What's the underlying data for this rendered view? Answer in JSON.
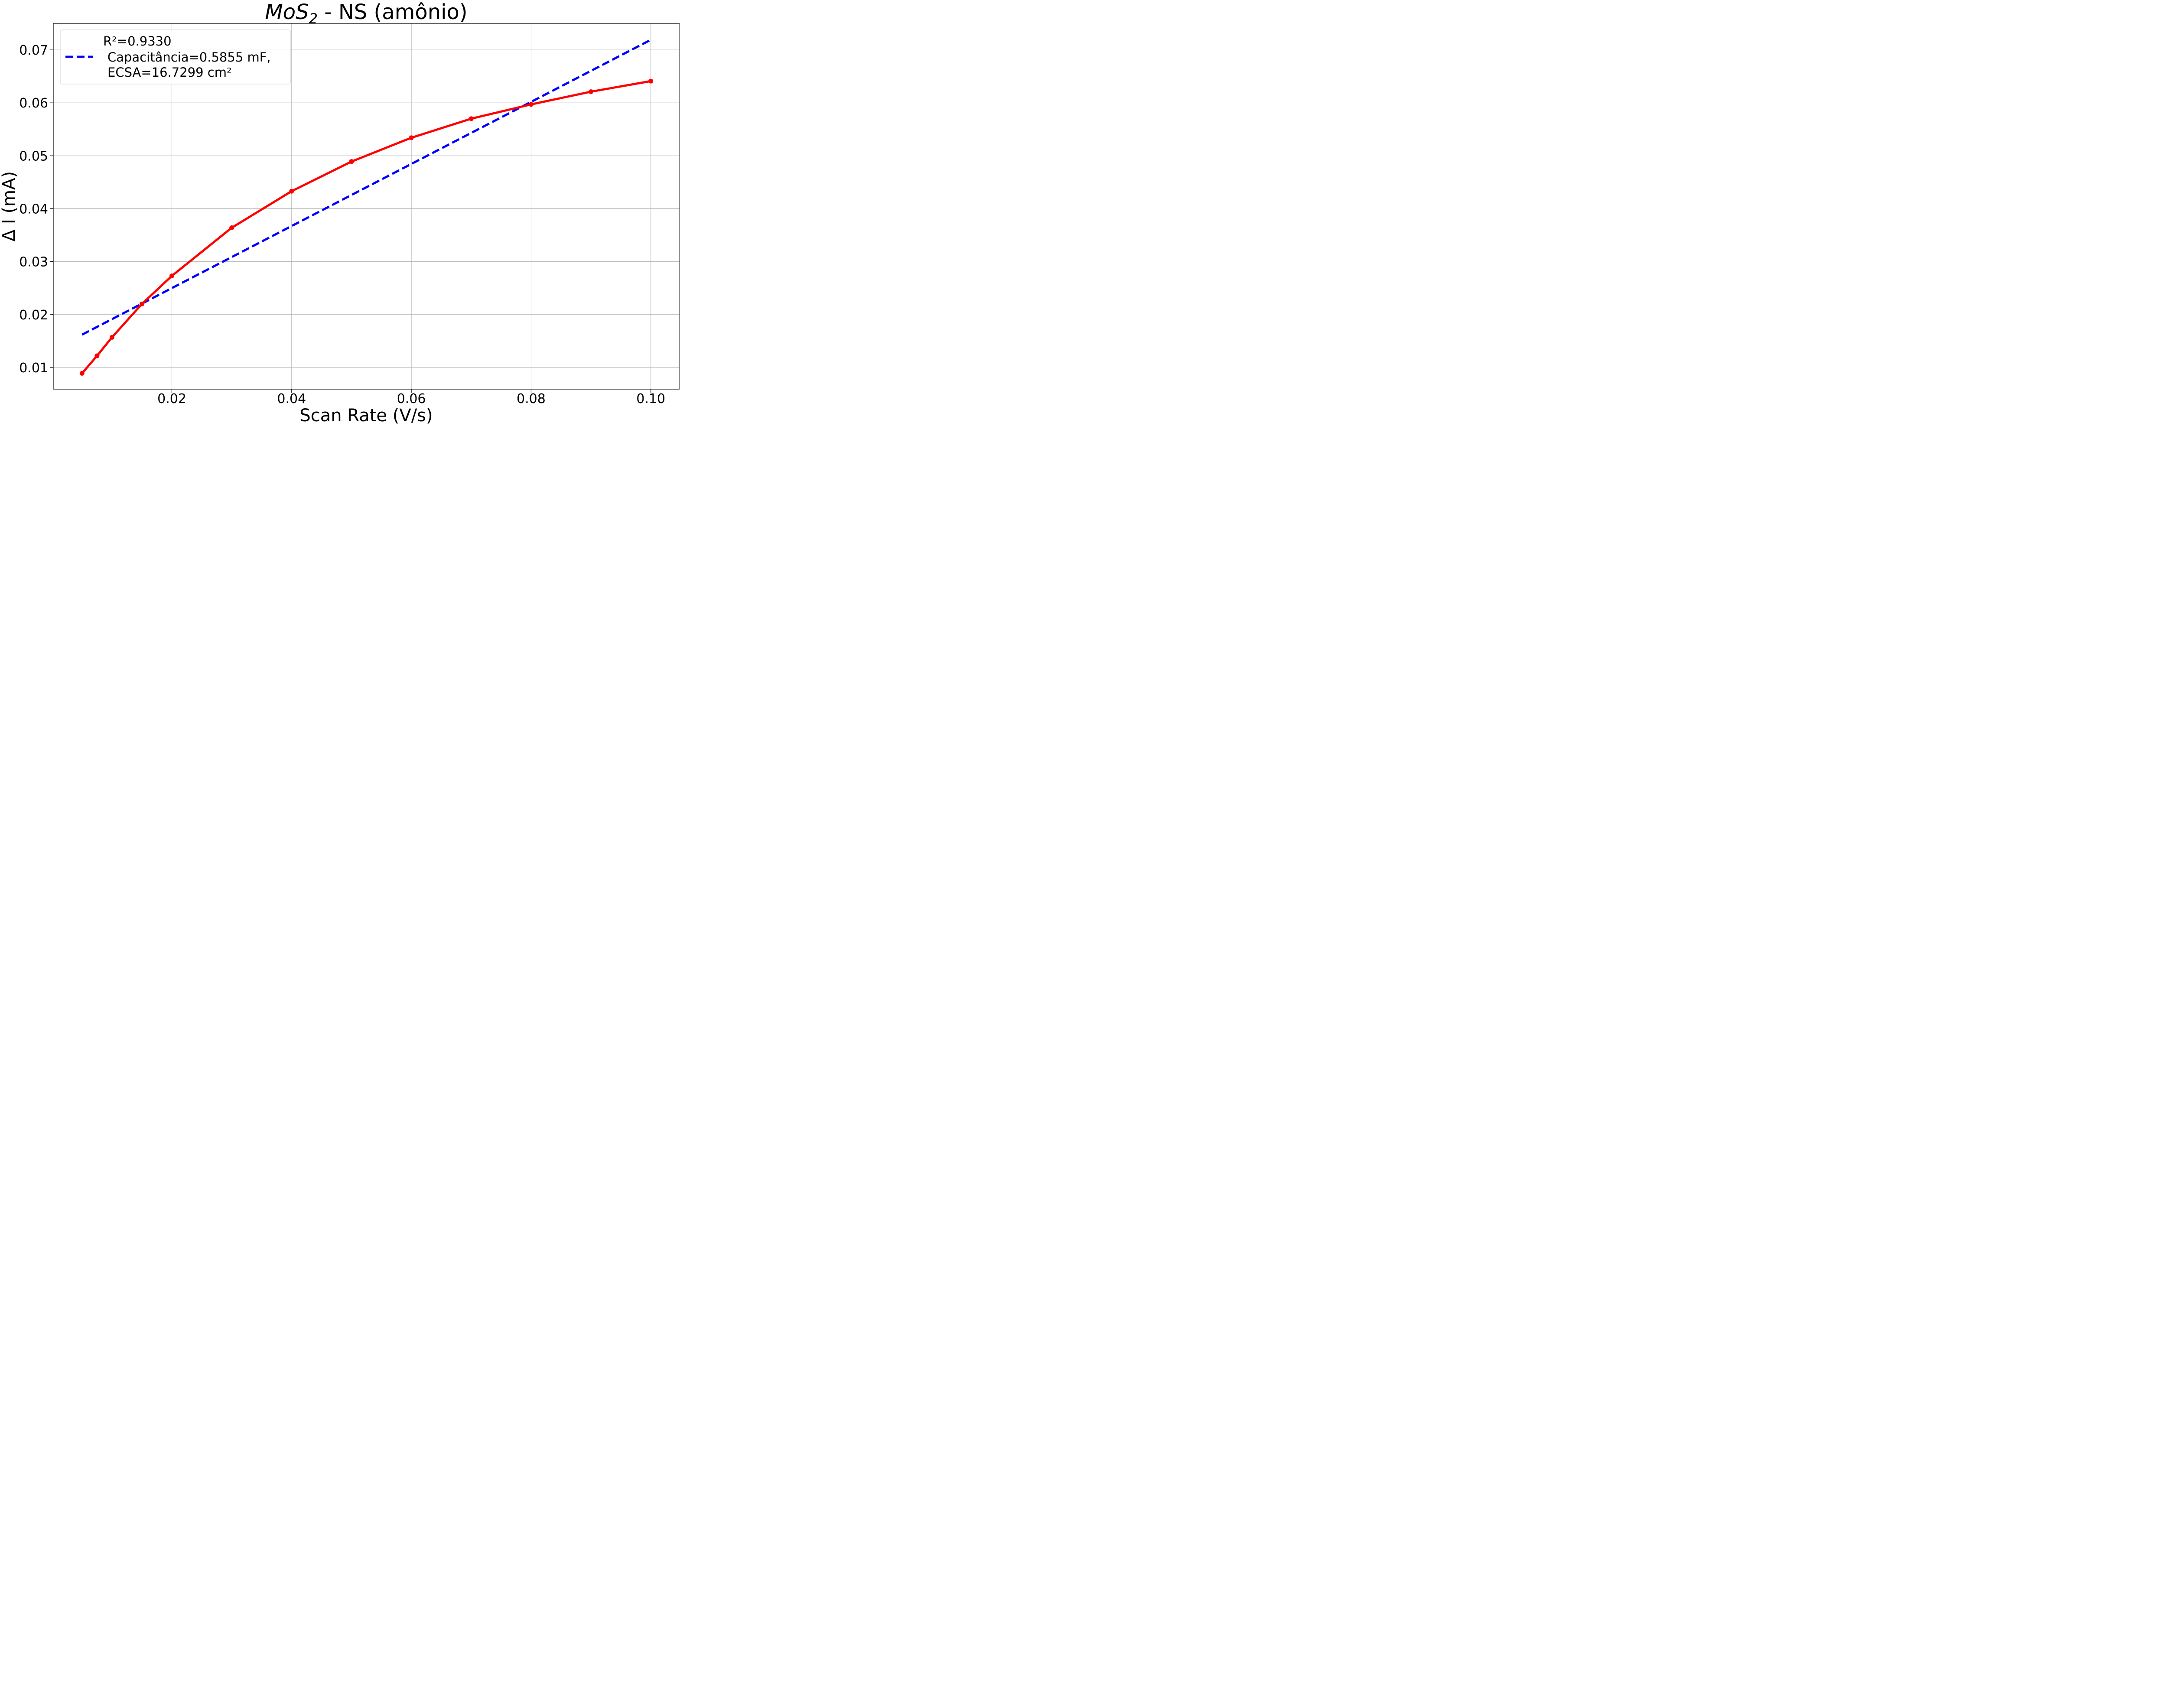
{
  "chart_data": {
    "type": "line",
    "title_main": "MoS",
    "title_sub": "2",
    "title_rest": " - NS (amônio)",
    "xlabel": "Scan Rate (V/s)",
    "ylabel": "Δ I (mA)",
    "xlim": [
      0.0002,
      0.1048
    ],
    "ylim": [
      0.0059,
      0.075
    ],
    "xticks": [
      0.02,
      0.04,
      0.06,
      0.08,
      0.1
    ],
    "xtick_labels": [
      "0.02",
      "0.04",
      "0.06",
      "0.08",
      "0.10"
    ],
    "yticks": [
      0.01,
      0.02,
      0.03,
      0.04,
      0.05,
      0.06,
      0.07
    ],
    "ytick_labels": [
      "0.01",
      "0.02",
      "0.03",
      "0.04",
      "0.05",
      "0.06",
      "0.07"
    ],
    "grid": true,
    "legend_position": "upper-left",
    "series": [
      {
        "kind": "data",
        "color": "#ff0000",
        "style": "solid-with-markers",
        "x": [
          0.005,
          0.0075,
          0.01,
          0.015,
          0.02,
          0.03,
          0.04,
          0.05,
          0.06,
          0.07,
          0.08,
          0.09,
          0.1
        ],
        "y": [
          0.0089,
          0.0122,
          0.0157,
          0.022,
          0.0273,
          0.0364,
          0.0433,
          0.0489,
          0.0534,
          0.057,
          0.0597,
          0.0621,
          0.0641
        ]
      },
      {
        "kind": "fit",
        "color": "#0000ff",
        "style": "dashed",
        "x": [
          0.005,
          0.1
        ],
        "y": [
          0.0162,
          0.0719
        ]
      }
    ],
    "legend": {
      "r2": "R²=0.9330",
      "fit_line1": "Capacitância=0.5855 mF,",
      "fit_line2": "ECSA=16.7299 cm²"
    }
  }
}
